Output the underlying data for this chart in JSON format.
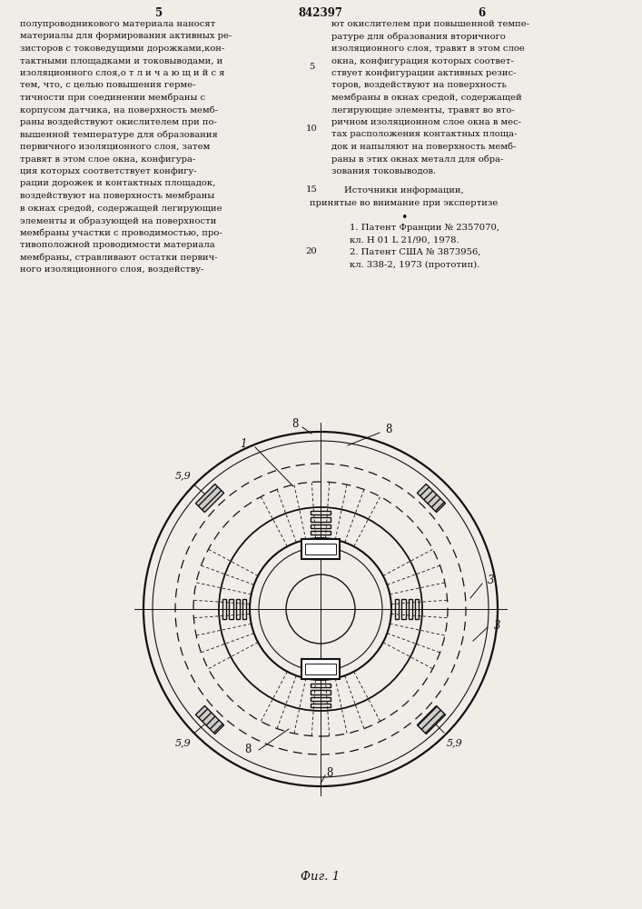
{
  "bg_color": "#f0ede8",
  "text_color": "#111111",
  "line_color": "#111111",
  "patent_number": "842397",
  "page_left": "5",
  "page_right": "6",
  "fig_caption": "Фиг. 1",
  "left_col": [
    "полупроводникового материала наносят",
    "материалы для формирования активных ре-",
    "зисторов с токоведущими дорожками,кон-",
    "тактными площадками и токовыводами, и",
    "изоляционного слоя,о т л и ч а ю щ и й с я",
    "тем, что, с целью повышения герме-",
    "тичности при соединении мембраны с",
    "корпусом датчика, на поверхность мемб-",
    "раны воздействуют окислителем при по-",
    "вышенной температуре для образования",
    "первичного изоляционного слоя, затем",
    "травят в этом слое окна, конфигура-",
    "ция которых соответствует конфигу-",
    "рации дорожек и контактных площадок,",
    "воздействуют на поверхность мембраны",
    "в окнах средой, содержащей легирующие",
    "элементы и образующей на поверхности",
    "мембраны участки с проводимостью, про-",
    "тивоположной проводимости материала",
    "мембраны, стравливают остатки первич-",
    "ного изоляционного слоя, воздейству-"
  ],
  "right_col": [
    "ют окислителем при повышенной темпе-",
    "ратуре для образования вторичного",
    "изоляционного слоя, травят в этом слое",
    "окна, конфигурация которых соответ-",
    "ствует конфигурации активных резис-",
    "торов, воздействуют на поверхность",
    "мембраны в окнах средой, содержащей",
    "легирующие элементы, травят во вто-",
    "ричном изоляционном слое окна в мес-",
    "тах расположения контактных площа-",
    "док и напыляют на поверхность мемб-",
    "раны в этих окнах металл для обра-",
    "зования токовыводов."
  ],
  "sources_header": "Источники информации,",
  "sources_sub": "принятые во внимание при экспертизе",
  "ref1a": "1. Патент Франции № 2357070,",
  "ref1b": "кл. H 01 L 21/90, 1978.",
  "ref2a": "2. Патент США № 3873956,",
  "ref2b": "кл. 338-2, 1973 (прототип).",
  "line_numbers": [
    5,
    10,
    15,
    20
  ],
  "line_number_rows": [
    4,
    9,
    14,
    19
  ]
}
